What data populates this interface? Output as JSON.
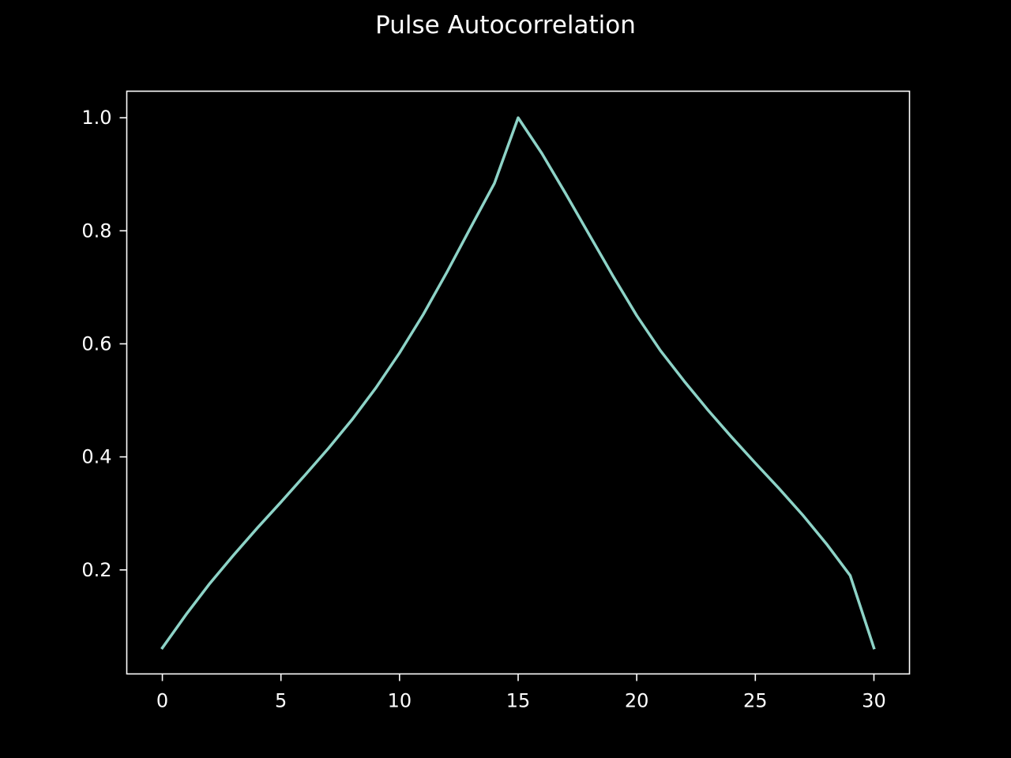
{
  "chart_data": {
    "type": "line",
    "title": "Pulse Autocorrelation",
    "xlabel": "",
    "ylabel": "",
    "xlim": [
      -1.5,
      31.5
    ],
    "ylim": [
      0.016,
      1.047
    ],
    "xticks": [
      0,
      5,
      10,
      15,
      20,
      25,
      30
    ],
    "xtick_labels": [
      "0",
      "5",
      "10",
      "15",
      "20",
      "25",
      "30"
    ],
    "yticks": [
      0.2,
      0.4,
      0.6,
      0.8,
      1.0
    ],
    "ytick_labels": [
      "0.2",
      "0.4",
      "0.6",
      "0.8",
      "1.0"
    ],
    "grid": false,
    "series": [
      {
        "color": "#8dd3c7",
        "x": [
          0,
          1,
          2,
          3,
          4,
          5,
          6,
          7,
          8,
          9,
          10,
          11,
          12,
          13,
          14,
          15,
          16,
          17,
          18,
          19,
          20,
          21,
          22,
          23,
          24,
          25,
          26,
          27,
          28,
          29,
          30
        ],
        "values": [
          0.062,
          0.121,
          0.176,
          0.226,
          0.274,
          0.32,
          0.367,
          0.415,
          0.466,
          0.522,
          0.584,
          0.652,
          0.727,
          0.806,
          0.884,
          1.0,
          0.937,
          0.866,
          0.793,
          0.72,
          0.65,
          0.588,
          0.534,
          0.483,
          0.435,
          0.389,
          0.344,
          0.297,
          0.246,
          0.19,
          0.062
        ]
      }
    ]
  }
}
